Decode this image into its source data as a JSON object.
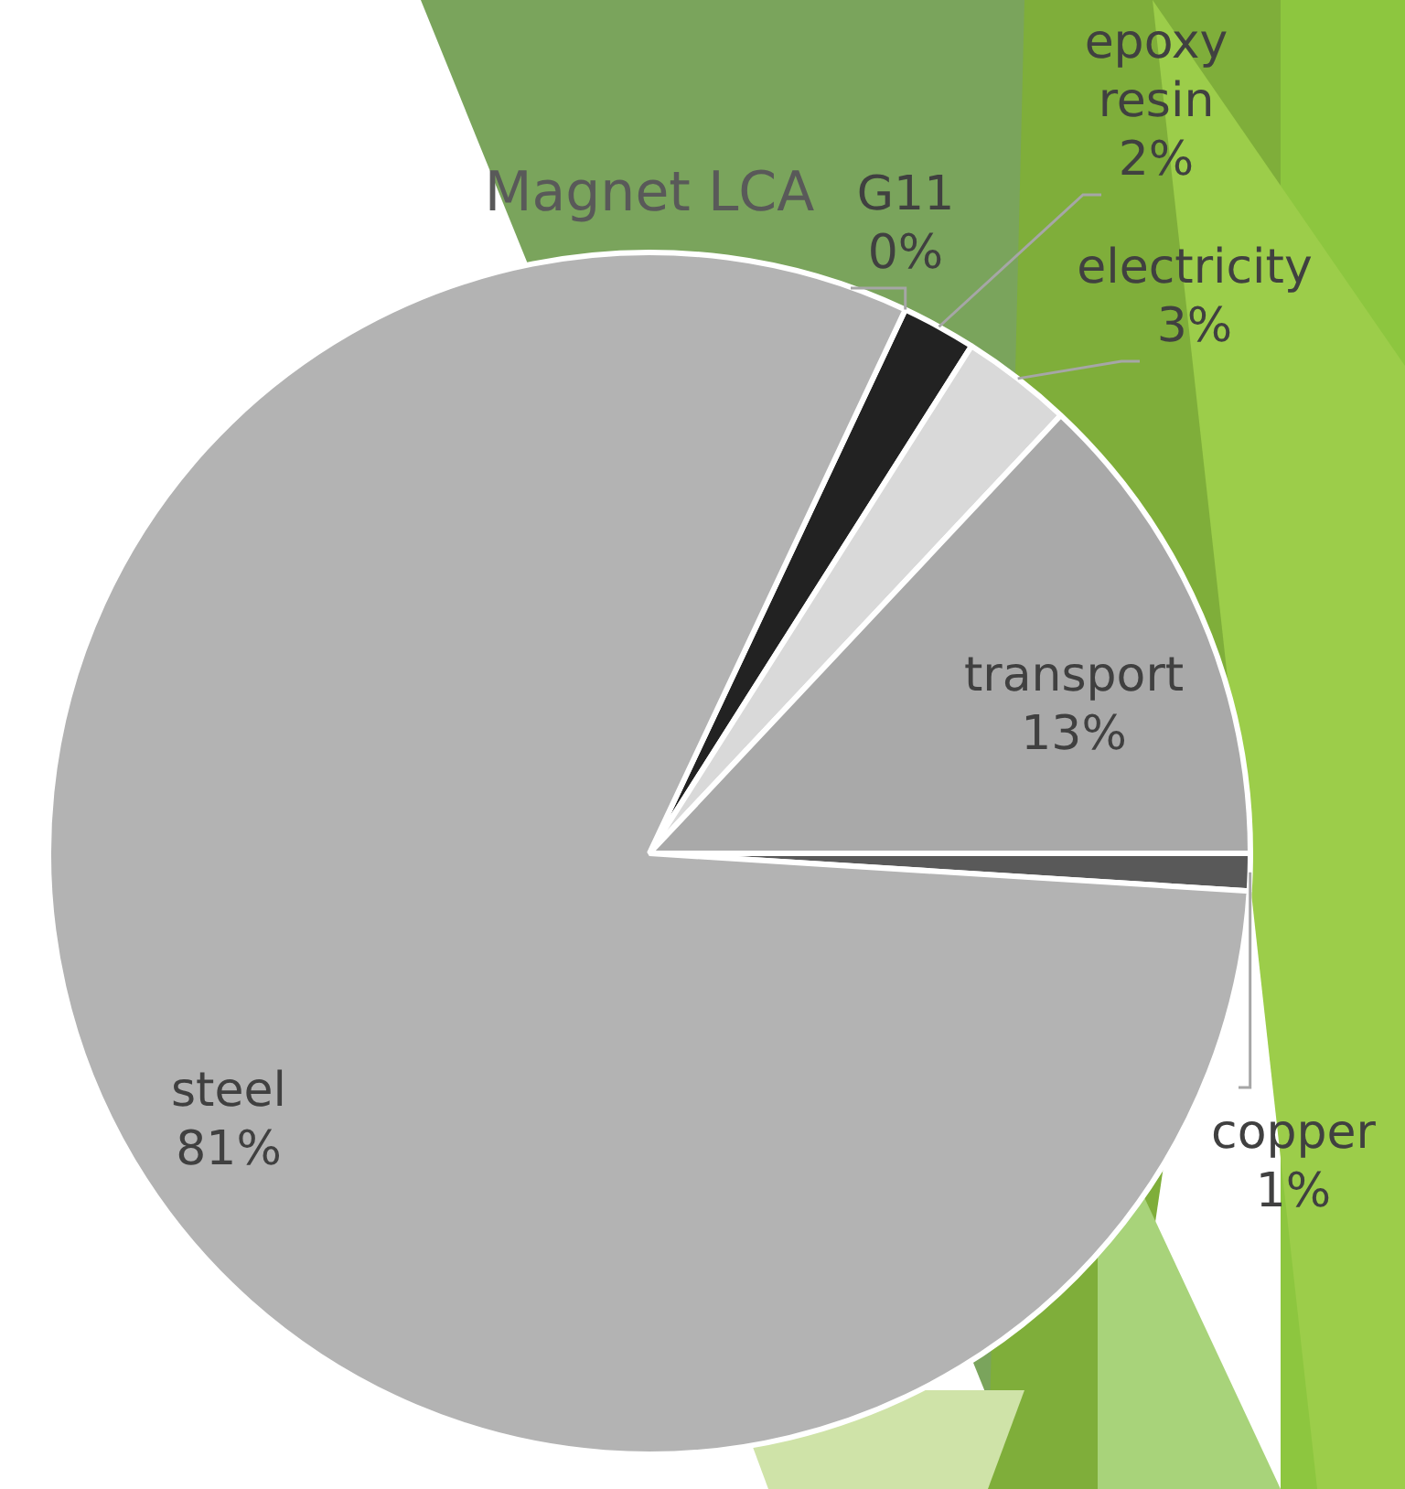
{
  "chart_data": {
    "type": "pie",
    "title": "Magnet LCA",
    "categories": [
      "G11",
      "epoxy resin",
      "electricity",
      "transport",
      "copper",
      "steel"
    ],
    "values": [
      0,
      2,
      3,
      13,
      1,
      81
    ],
    "colors": [
      "#ffffff",
      "#222222",
      "#d9d9d9",
      "#a9a9a9",
      "#595959",
      "#b3b3b3"
    ],
    "value_labels": [
      "0%",
      "2%",
      "3%",
      "13%",
      "1%",
      "81%"
    ],
    "legend": false
  }
}
